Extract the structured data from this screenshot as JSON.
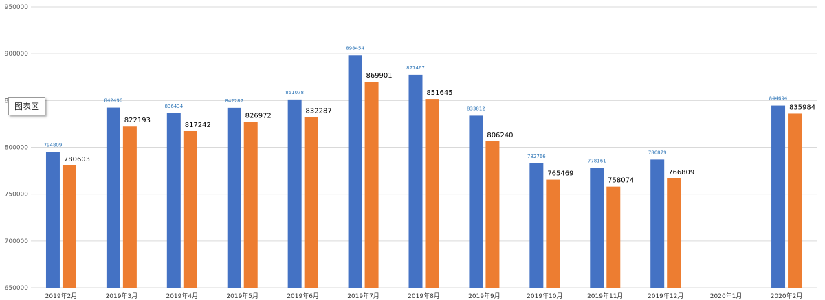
{
  "tooltip": "图表区",
  "colors": {
    "series1": "#4472C4",
    "series2": "#ED7D31",
    "grid": "#D9D9D9",
    "axis_text": "#595959",
    "label1": "#2E75B6",
    "label2": "#000000"
  },
  "chart_data": {
    "type": "bar",
    "title": "",
    "xlabel": "",
    "ylabel": "",
    "ylim": [
      650000,
      950000
    ],
    "yticks": [
      "650000",
      "700000",
      "750000",
      "800000",
      "850000",
      "900000",
      "950000"
    ],
    "grid": true,
    "categories": [
      "2019年2月",
      "2019年3月",
      "2019年4月",
      "2019年5月",
      "2019年6月",
      "2019年7月",
      "2019年8月",
      "2019年9月",
      "2019年10月",
      "2019年11月",
      "2019年12月",
      "2020年1月",
      "2020年2月"
    ],
    "series": [
      {
        "values": [
          794809,
          842496,
          836434,
          842287,
          851078,
          898454,
          877467,
          833812,
          782766,
          778161,
          786879,
          null,
          844694
        ]
      },
      {
        "values": [
          780603,
          822193,
          817242,
          826972,
          832287,
          869901,
          851645,
          806240,
          765469,
          758074,
          766809,
          null,
          835984
        ]
      }
    ]
  }
}
